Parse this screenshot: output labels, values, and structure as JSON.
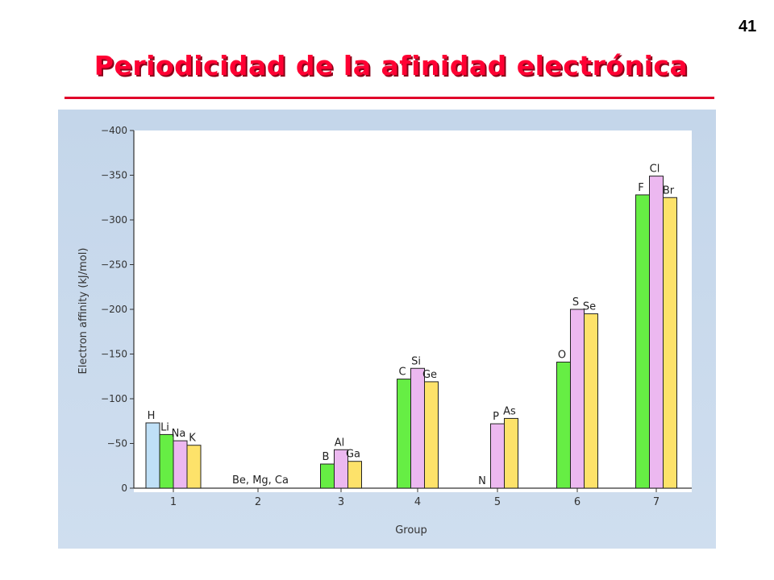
{
  "slide": {
    "page_number": "41",
    "title": "Periodicidad de la afinidad electrónica"
  },
  "colors": {
    "title": "#ff0033",
    "panel_bg": "#c8d9ec",
    "period1": "#bfe0f7",
    "period2": "#66ee44",
    "period3": "#ecb8f0",
    "period4": "#fde26a"
  },
  "chart_data": {
    "type": "bar",
    "xlabel": "Group",
    "ylabel": "Electron affinity (kJ/mol)",
    "ylim": [
      0,
      -400
    ],
    "yticks": [
      "0",
      "−50",
      "−100",
      "−150",
      "−200",
      "−250",
      "−300",
      "−350",
      "−400"
    ],
    "ytick_values": [
      0,
      -50,
      -100,
      -150,
      -200,
      -250,
      -300,
      -350,
      -400
    ],
    "categories": [
      "1",
      "2",
      "3",
      "4",
      "5",
      "6",
      "7"
    ],
    "grid": false,
    "bars": [
      {
        "group": "1",
        "element": "H",
        "value": -73,
        "color": "period1"
      },
      {
        "group": "1",
        "element": "Li",
        "value": -60,
        "color": "period2"
      },
      {
        "group": "1",
        "element": "Na",
        "value": -53,
        "color": "period3"
      },
      {
        "group": "1",
        "element": "K",
        "value": -48,
        "color": "period4"
      },
      {
        "group": "3",
        "element": "B",
        "value": -27,
        "color": "period2"
      },
      {
        "group": "3",
        "element": "Al",
        "value": -43,
        "color": "period3"
      },
      {
        "group": "3",
        "element": "Ga",
        "value": -30,
        "color": "period4"
      },
      {
        "group": "4",
        "element": "C",
        "value": -122,
        "color": "period2"
      },
      {
        "group": "4",
        "element": "Si",
        "value": -134,
        "color": "period3"
      },
      {
        "group": "4",
        "element": "Ge",
        "value": -119,
        "color": "period4"
      },
      {
        "group": "5",
        "element": "N",
        "value": 0,
        "color": "period2"
      },
      {
        "group": "5",
        "element": "P",
        "value": -72,
        "color": "period3"
      },
      {
        "group": "5",
        "element": "As",
        "value": -78,
        "color": "period4"
      },
      {
        "group": "6",
        "element": "O",
        "value": -141,
        "color": "period2"
      },
      {
        "group": "6",
        "element": "S",
        "value": -200,
        "color": "period3"
      },
      {
        "group": "6",
        "element": "Se",
        "value": -195,
        "color": "period4"
      },
      {
        "group": "7",
        "element": "F",
        "value": -328,
        "color": "period2"
      },
      {
        "group": "7",
        "element": "Cl",
        "value": -349,
        "color": "period3"
      },
      {
        "group": "7",
        "element": "Br",
        "value": -325,
        "color": "period4"
      }
    ],
    "annotations": [
      {
        "group": "2",
        "text": "Be, Mg, Ca"
      }
    ]
  }
}
